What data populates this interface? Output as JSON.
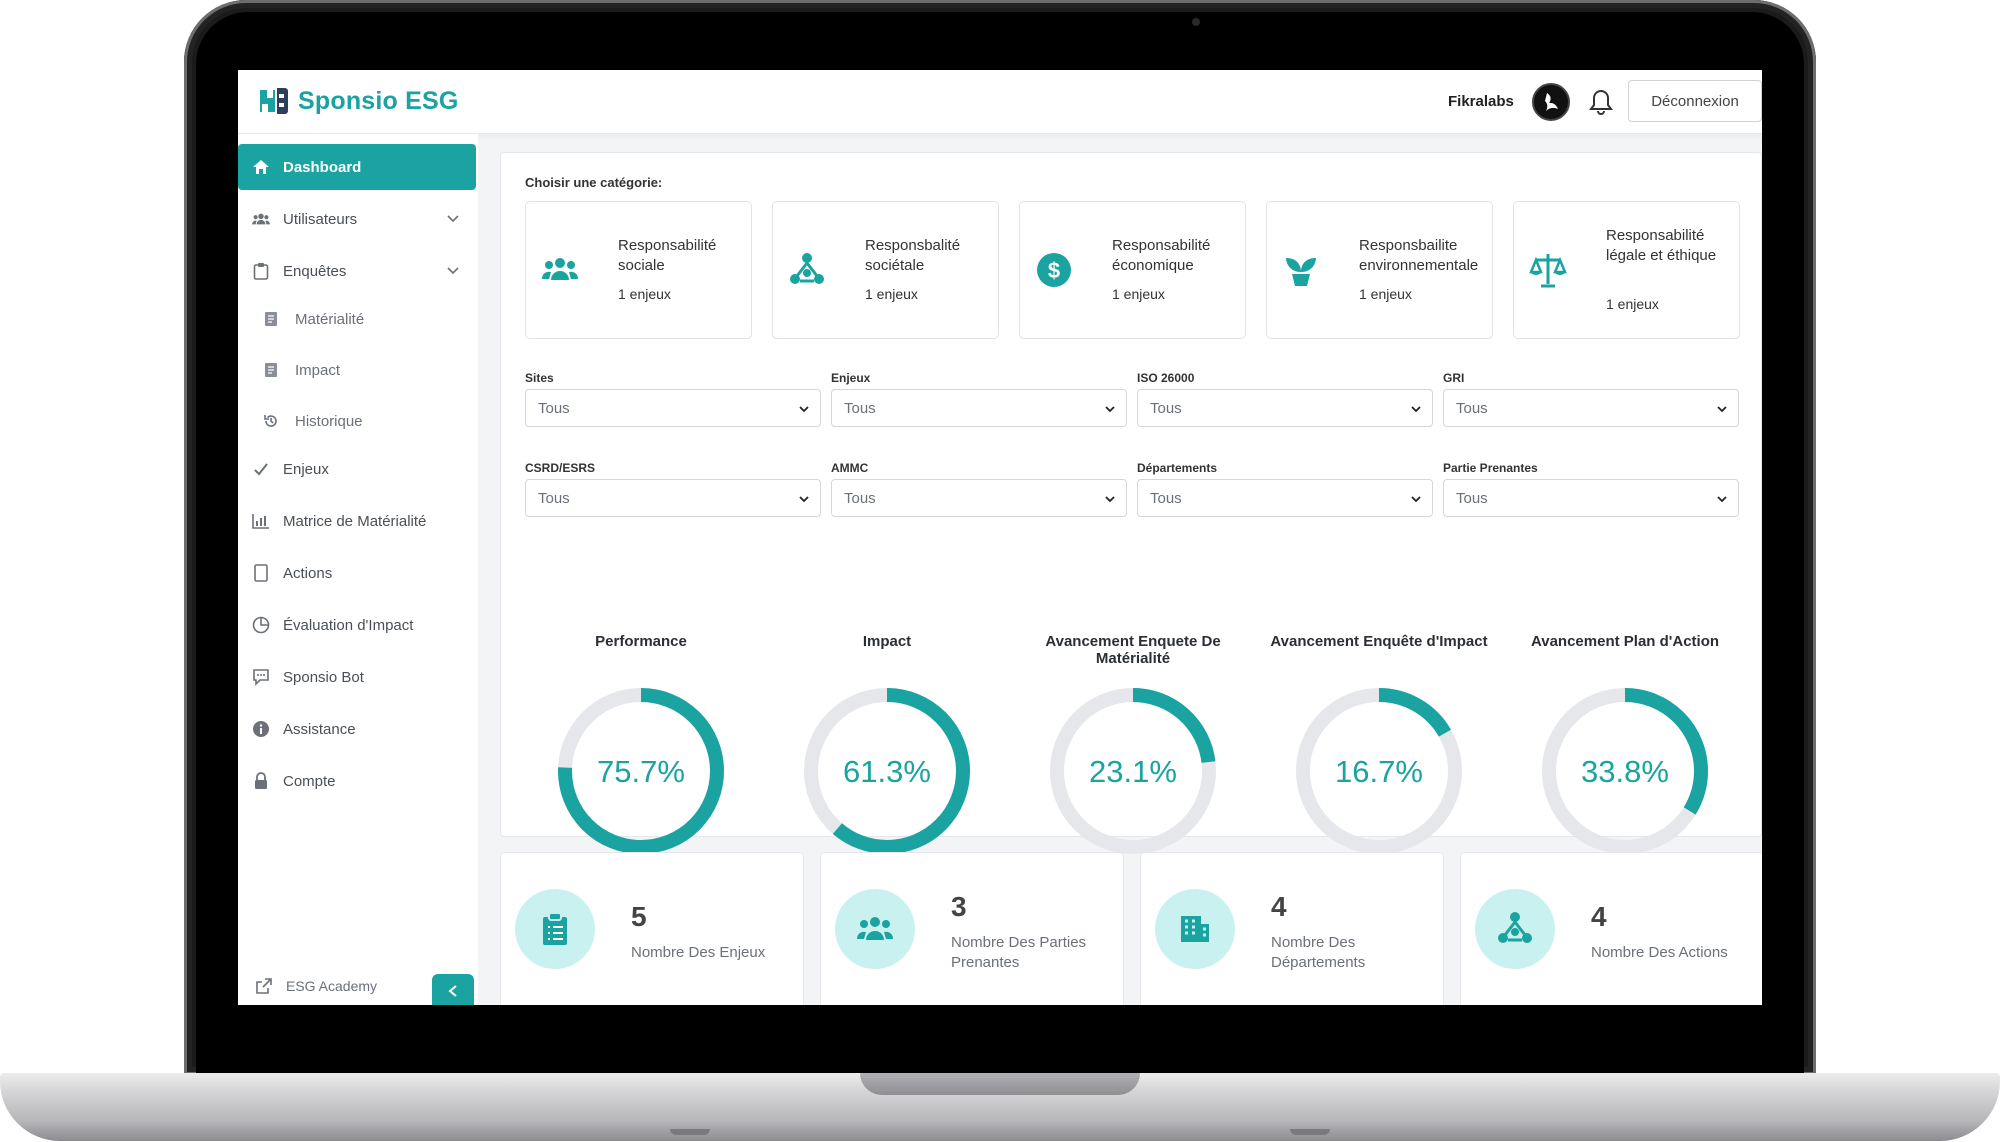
{
  "app": {
    "brand": "Sponsio ESG"
  },
  "header": {
    "user_name": "Fikralabs",
    "logout_label": "Déconnexion"
  },
  "sidebar": {
    "items": [
      {
        "label": "Dashboard",
        "icon": "home-icon"
      },
      {
        "label": "Utilisateurs",
        "icon": "users-icon"
      },
      {
        "label": "Enquêtes",
        "icon": "clipboard-icon"
      },
      {
        "label": "Matérialité",
        "icon": "doc-icon"
      },
      {
        "label": "Impact",
        "icon": "doc-icon"
      },
      {
        "label": "Historique",
        "icon": "history-icon"
      },
      {
        "label": "Enjeux",
        "icon": "check-icon"
      },
      {
        "label": "Matrice de Matérialité",
        "icon": "bar-chart-icon"
      },
      {
        "label": "Actions",
        "icon": "doc-icon"
      },
      {
        "label": "Évaluation d'Impact",
        "icon": "pie-icon"
      },
      {
        "label": "Sponsio Bot",
        "icon": "chat-icon"
      },
      {
        "label": "Assistance",
        "icon": "info-icon"
      },
      {
        "label": "Compte",
        "icon": "lock-icon"
      }
    ],
    "academy_label": "ESG Academy"
  },
  "category": {
    "title": "Choisir une catégorie:",
    "cards": [
      {
        "title": "Responsabilité sociale",
        "count": "1 enjeux",
        "icon": "people-group-icon"
      },
      {
        "title": "Responsbalité sociétale",
        "count": "1 enjeux",
        "icon": "network-icon"
      },
      {
        "title": "Responsabilité économique",
        "count": "1 enjeux",
        "icon": "dollar-icon"
      },
      {
        "title": "Responsbailite environnementale",
        "count": "1 enjeux",
        "icon": "plant-icon"
      },
      {
        "title": "Responsabilité légale et éthique",
        "count": "1 enjeux",
        "icon": "scales-icon"
      }
    ]
  },
  "filters": [
    {
      "label": "Sites",
      "value": "Tous"
    },
    {
      "label": "Enjeux",
      "value": "Tous"
    },
    {
      "label": "ISO 26000",
      "value": "Tous"
    },
    {
      "label": "GRI",
      "value": "Tous"
    },
    {
      "label": "CSRD/ESRS",
      "value": "Tous"
    },
    {
      "label": "AMMC",
      "value": "Tous"
    },
    {
      "label": "Départements",
      "value": "Tous"
    },
    {
      "label": "Partie Prenantes",
      "value": "Tous"
    }
  ],
  "gauges": [
    {
      "title": "Performance",
      "value": 75.7,
      "label": "75.7%"
    },
    {
      "title": "Impact",
      "value": 61.3,
      "label": "61.3%"
    },
    {
      "title": "Avancement Enquete De Matérialité",
      "value": 23.1,
      "label": "23.1%"
    },
    {
      "title": "Avancement Enquête d'Impact",
      "value": 16.7,
      "label": "16.7%"
    },
    {
      "title": "Avancement Plan d'Action",
      "value": 33.8,
      "label": "33.8%"
    }
  ],
  "stats": [
    {
      "value": "5",
      "label": "Nombre Des Enjeux",
      "icon": "clipboard-list-icon"
    },
    {
      "value": "3",
      "label": "Nombre Des Parties Prenantes",
      "icon": "people-group-icon"
    },
    {
      "value": "4",
      "label": "Nombre Des Départements",
      "icon": "building-icon"
    },
    {
      "value": "4",
      "label": "Nombre Des Actions",
      "icon": "network-icon"
    }
  ],
  "colors": {
    "accent": "#1aa3a0",
    "track": "#e6e7ea",
    "stat_icon_bg": "#c9f1ef"
  }
}
